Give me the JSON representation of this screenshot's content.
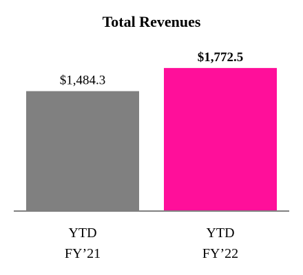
{
  "chart_data": {
    "type": "bar",
    "title": "Total Revenues",
    "categories": [
      [
        "YTD",
        "FY’21"
      ],
      [
        "YTD",
        "FY’22"
      ]
    ],
    "values": [
      1484.3,
      1772.5
    ],
    "data_labels": [
      "$1,484.3",
      "$1,772.5"
    ],
    "data_label_bold": [
      false,
      true
    ],
    "colors": [
      "#808080",
      "#ff0f9a"
    ],
    "ylim": [
      0,
      1900
    ],
    "grid": false,
    "legend": "none"
  }
}
